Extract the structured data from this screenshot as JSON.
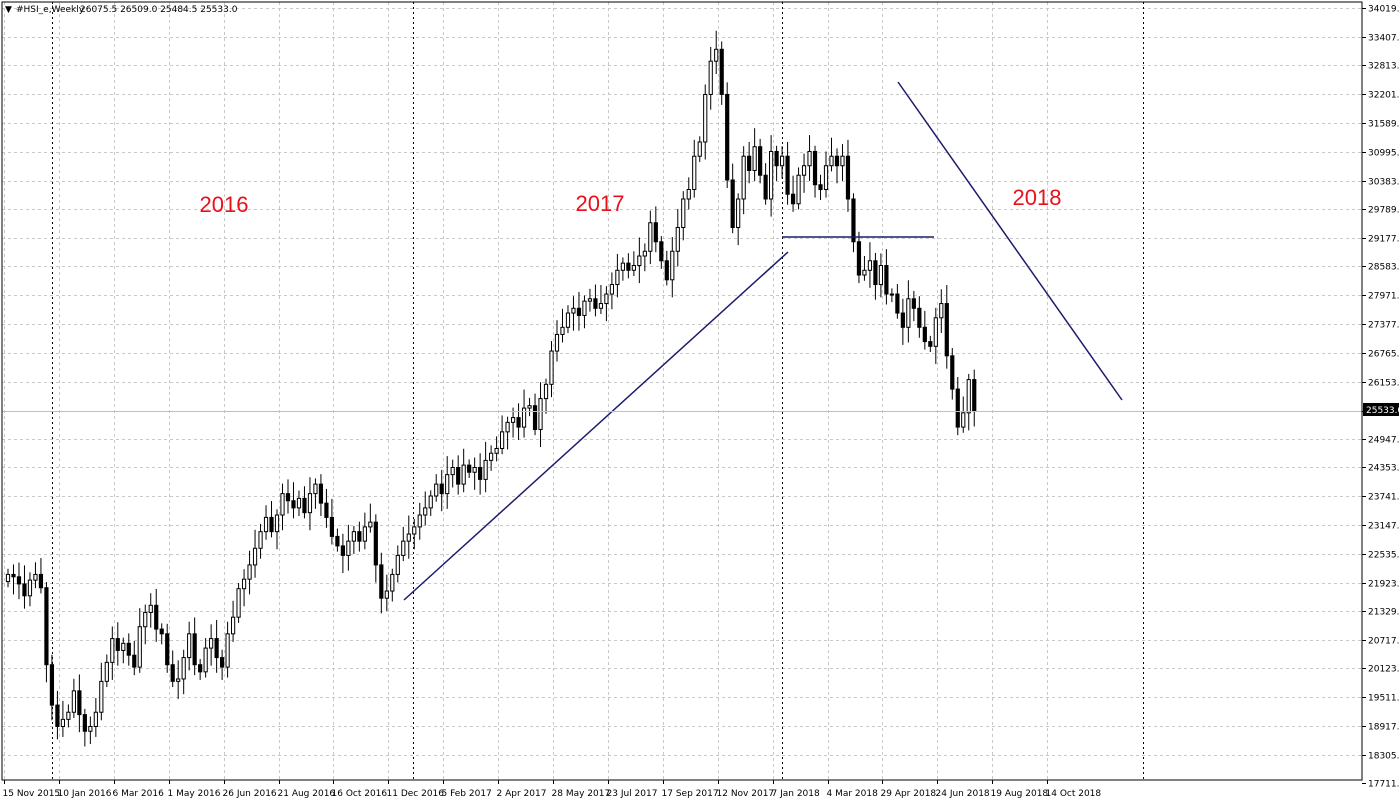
{
  "header": {
    "arrow": "▼",
    "symbol": "#HSI_e,Weekly",
    "ohlc": "26075.5 26509.0 25484.5 25533.0"
  },
  "current_price_label": "25533.0",
  "colors": {
    "background": "#ffffff",
    "grid": "#c8c8c8",
    "candle": "#000000",
    "trendline": "#1c1c6b",
    "annotation": "#e8101a"
  },
  "chart_data": {
    "type": "candlestick",
    "ylim": [
      17711,
      34019
    ],
    "y_ticks": [
      "34019.0",
      "33407.0",
      "32813.0",
      "32201.0",
      "31589.0",
      "30995.0",
      "30383.0",
      "29789.0",
      "29177.0",
      "28583.0",
      "27971.0",
      "27377.0",
      "26765.0",
      "26153.0",
      "25533.0",
      "24947.0",
      "24353.0",
      "23741.0",
      "23147.0",
      "22535.0",
      "21923.0",
      "21329.0",
      "20717.0",
      "20123.0",
      "19511.0",
      "18917.0",
      "18305.0",
      "17711.0"
    ],
    "x_ticks": [
      "15 Nov 2015",
      "10 Jan 2016",
      "6 Mar 2016",
      "1 May 2016",
      "26 Jun 2016",
      "21 Aug 2016",
      "16 Oct 2016",
      "11 Dec 2016",
      "5 Feb 2017",
      "2 Apr 2017",
      "28 May 2017",
      "23 Jul 2017",
      "17 Sep 2017",
      "12 Nov 2017",
      "7 Jan 2018",
      "4 Mar 2018",
      "29 Apr 2018",
      "24 Jun 2018",
      "19 Aug 2018",
      "14 Oct 2018"
    ],
    "annotations": [
      "2016",
      "2017",
      "2018"
    ],
    "close_series": [
      22100,
      22050,
      21900,
      21650,
      21980,
      22100,
      21820,
      20200,
      19350,
      18900,
      19050,
      19200,
      19650,
      19150,
      18800,
      18900,
      19200,
      19850,
      20250,
      20750,
      20500,
      20650,
      20400,
      20150,
      21000,
      21300,
      21450,
      20950,
      20850,
      20200,
      19850,
      19900,
      20350,
      20850,
      20200,
      20050,
      20550,
      20750,
      20350,
      20150,
      20850,
      21200,
      21800,
      22000,
      22300,
      22650,
      23000,
      23300,
      23000,
      23350,
      23800,
      23650,
      23500,
      23700,
      23400,
      23800,
      24000,
      23600,
      23300,
      22900,
      22700,
      22500,
      22800,
      23000,
      22800,
      23100,
      23200,
      22300,
      21600,
      21750,
      22100,
      22500,
      22800,
      22950,
      23100,
      23350,
      23500,
      23750,
      24000,
      23800,
      24200,
      24350,
      24000,
      24400,
      24250,
      24350,
      24100,
      24500,
      24650,
      24750,
      25100,
      25300,
      25400,
      25200,
      25600,
      25650,
      25150,
      25800,
      26100,
      26800,
      27150,
      27300,
      27600,
      27700,
      27550,
      27850,
      27900,
      27700,
      27800,
      28000,
      28200,
      28500,
      28650,
      28500,
      28600,
      28800,
      28900,
      29500,
      29100,
      28700,
      28300,
      28900,
      29400,
      30000,
      30200,
      30900,
      31200,
      32200,
      32900,
      33150,
      32200,
      30400,
      29400,
      30000,
      30900,
      30600,
      31100,
      30500,
      30000,
      31000,
      30700,
      30900,
      30100,
      29900,
      30500,
      30700,
      31000,
      30300,
      30200,
      30700,
      30900,
      30700,
      30900,
      30000,
      29100,
      28400,
      28500,
      28700,
      28200,
      28600,
      28000,
      28000,
      27600,
      27300,
      27900,
      27700,
      27300,
      27000,
      26900,
      27500,
      27800,
      26700,
      26000,
      25200,
      25500,
      26200,
      25533
    ]
  }
}
